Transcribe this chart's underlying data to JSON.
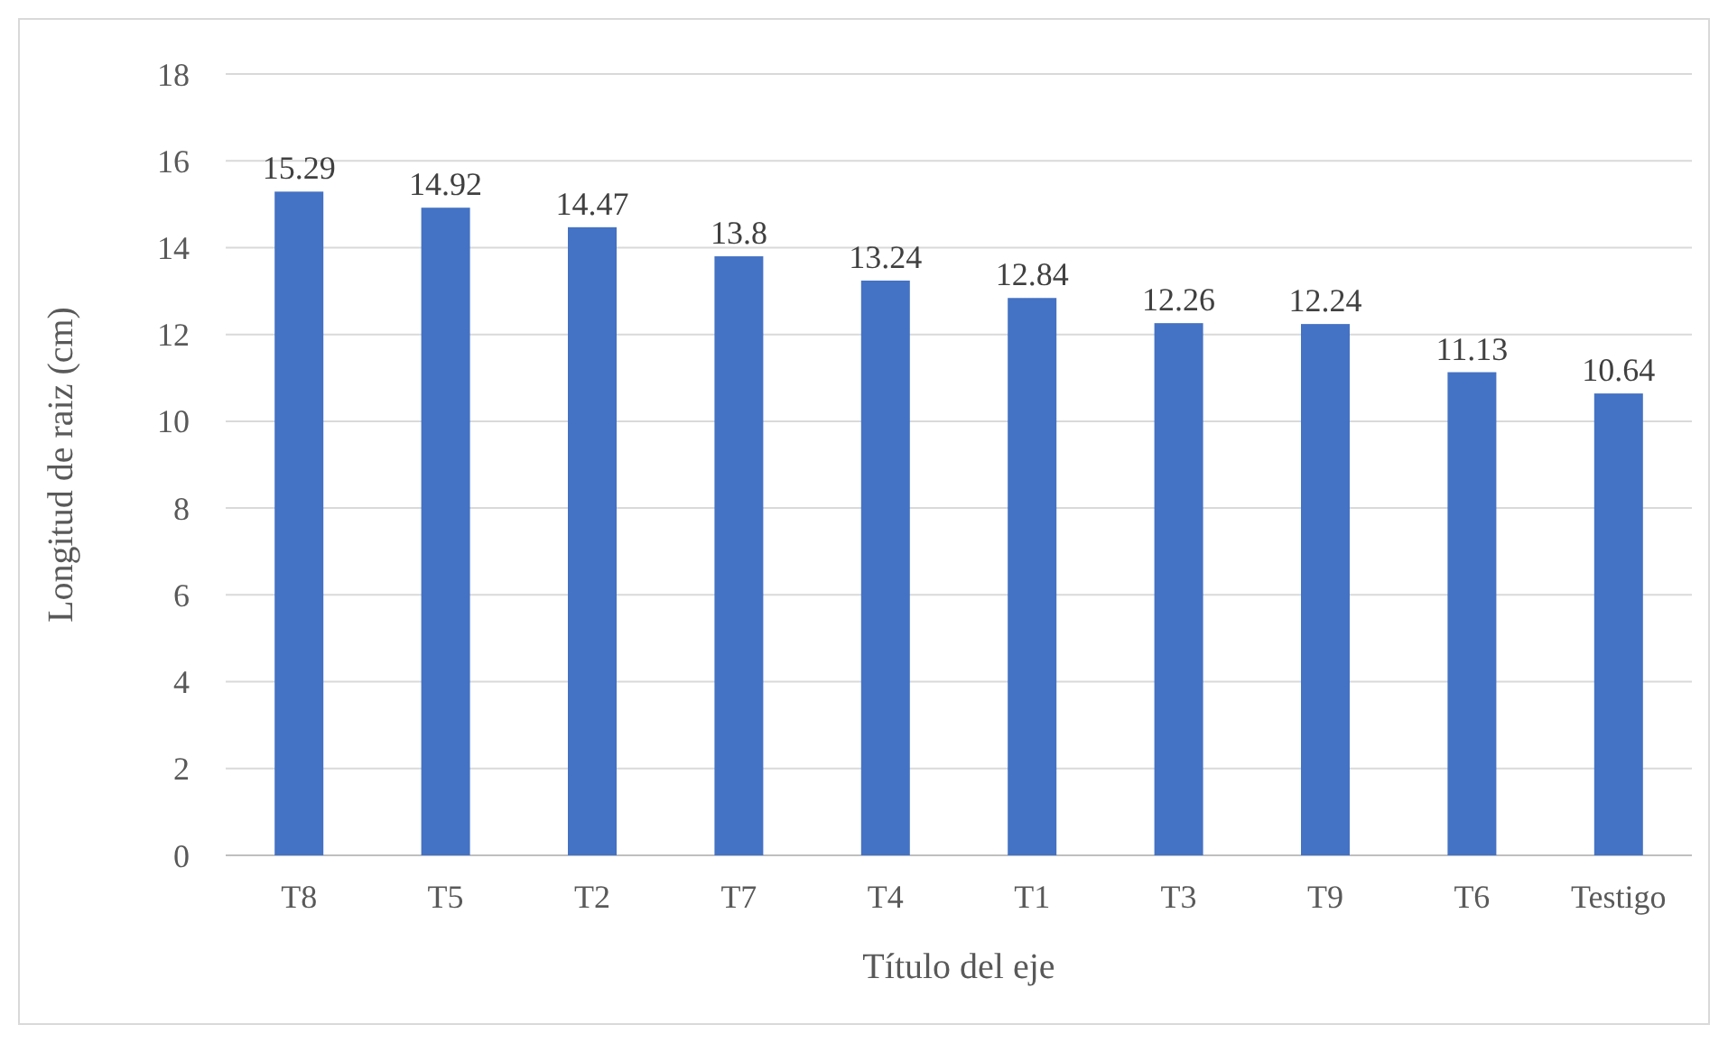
{
  "chart_data": {
    "type": "bar",
    "xlabel": "Título del eje",
    "ylabel": "Longitud de raiz (cm)",
    "categories": [
      "T8",
      "T5",
      "T2",
      "T7",
      "T4",
      "T1",
      "T3",
      "T9",
      "T6",
      "Testigo"
    ],
    "values": [
      15.29,
      14.92,
      14.47,
      13.8,
      13.24,
      12.84,
      12.26,
      12.24,
      11.13,
      10.64
    ],
    "color": "#4472c4",
    "ylim": [
      0,
      18
    ],
    "yticks": [
      0,
      2,
      4,
      6,
      8,
      10,
      12,
      14,
      16,
      18
    ],
    "grid": "y",
    "data_labels": true
  }
}
